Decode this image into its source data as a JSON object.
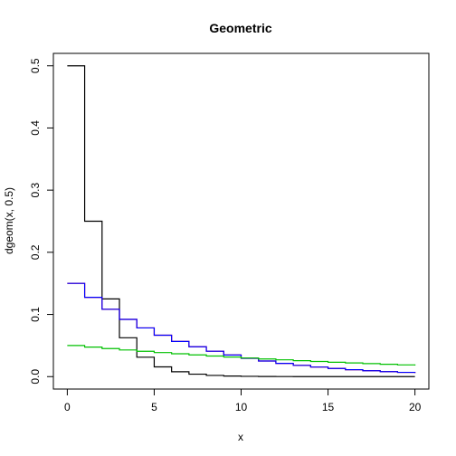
{
  "chart_data": {
    "type": "line",
    "step": true,
    "title": "Geometric",
    "xlabel": "x",
    "ylabel": "dgeom(x, 0.5)",
    "xlim": [
      -0.8,
      20.8
    ],
    "ylim": [
      -0.02,
      0.52
    ],
    "xticks": [
      0,
      5,
      10,
      15,
      20
    ],
    "xtick_labels": [
      "0",
      "5",
      "10",
      "15",
      "20"
    ],
    "yticks": [
      0.0,
      0.1,
      0.2,
      0.3,
      0.4,
      0.5
    ],
    "ytick_labels": [
      "0.0",
      "0.1",
      "0.2",
      "0.3",
      "0.4",
      "0.5"
    ],
    "grid": false,
    "x": [
      0,
      1,
      2,
      3,
      4,
      5,
      6,
      7,
      8,
      9,
      10,
      11,
      12,
      13,
      14,
      15,
      16,
      17,
      18,
      19,
      20
    ],
    "series": [
      {
        "color": "#000000",
        "values": [
          0.5,
          0.25,
          0.125,
          0.0625,
          0.03125,
          0.015625,
          0.0078125,
          0.0039063,
          0.0019531,
          0.0009766,
          0.0004883,
          0.0002441,
          0.0001221,
          6.1e-05,
          3.05e-05,
          1.53e-05,
          7.6e-06,
          3.8e-06,
          1.9e-06,
          1e-06,
          5e-07
        ]
      },
      {
        "color": "#ff0000",
        "values": [
          0.15,
          0.1275,
          0.108375,
          0.0921188,
          0.0783009,
          0.0665558,
          0.0565724,
          0.0480866,
          0.0408736,
          0.0347425,
          0.0295312,
          0.0251015,
          0.0213363,
          0.0181358,
          0.0154154,
          0.0131031,
          0.0111376,
          0.009467,
          0.008047,
          0.00684,
          0.005814
        ]
      },
      {
        "color": "#0000ff",
        "values": [
          0.15,
          0.1275,
          0.108375,
          0.0921188,
          0.0783009,
          0.0665558,
          0.0565724,
          0.0480866,
          0.0408736,
          0.0347425,
          0.0295312,
          0.0251015,
          0.0213363,
          0.0181358,
          0.0154154,
          0.0131031,
          0.0111376,
          0.009467,
          0.008047,
          0.00684,
          0.005814
        ]
      },
      {
        "color": "#00c000",
        "values": [
          0.05,
          0.0475,
          0.045125,
          0.0428688,
          0.0407253,
          0.038689,
          0.0367546,
          0.0349169,
          0.033171,
          0.0315125,
          0.0299368,
          0.02844,
          0.027018,
          0.025667,
          0.024384,
          0.023165,
          0.022006,
          0.020906,
          0.019861,
          0.018868,
          0.017924
        ]
      }
    ]
  }
}
